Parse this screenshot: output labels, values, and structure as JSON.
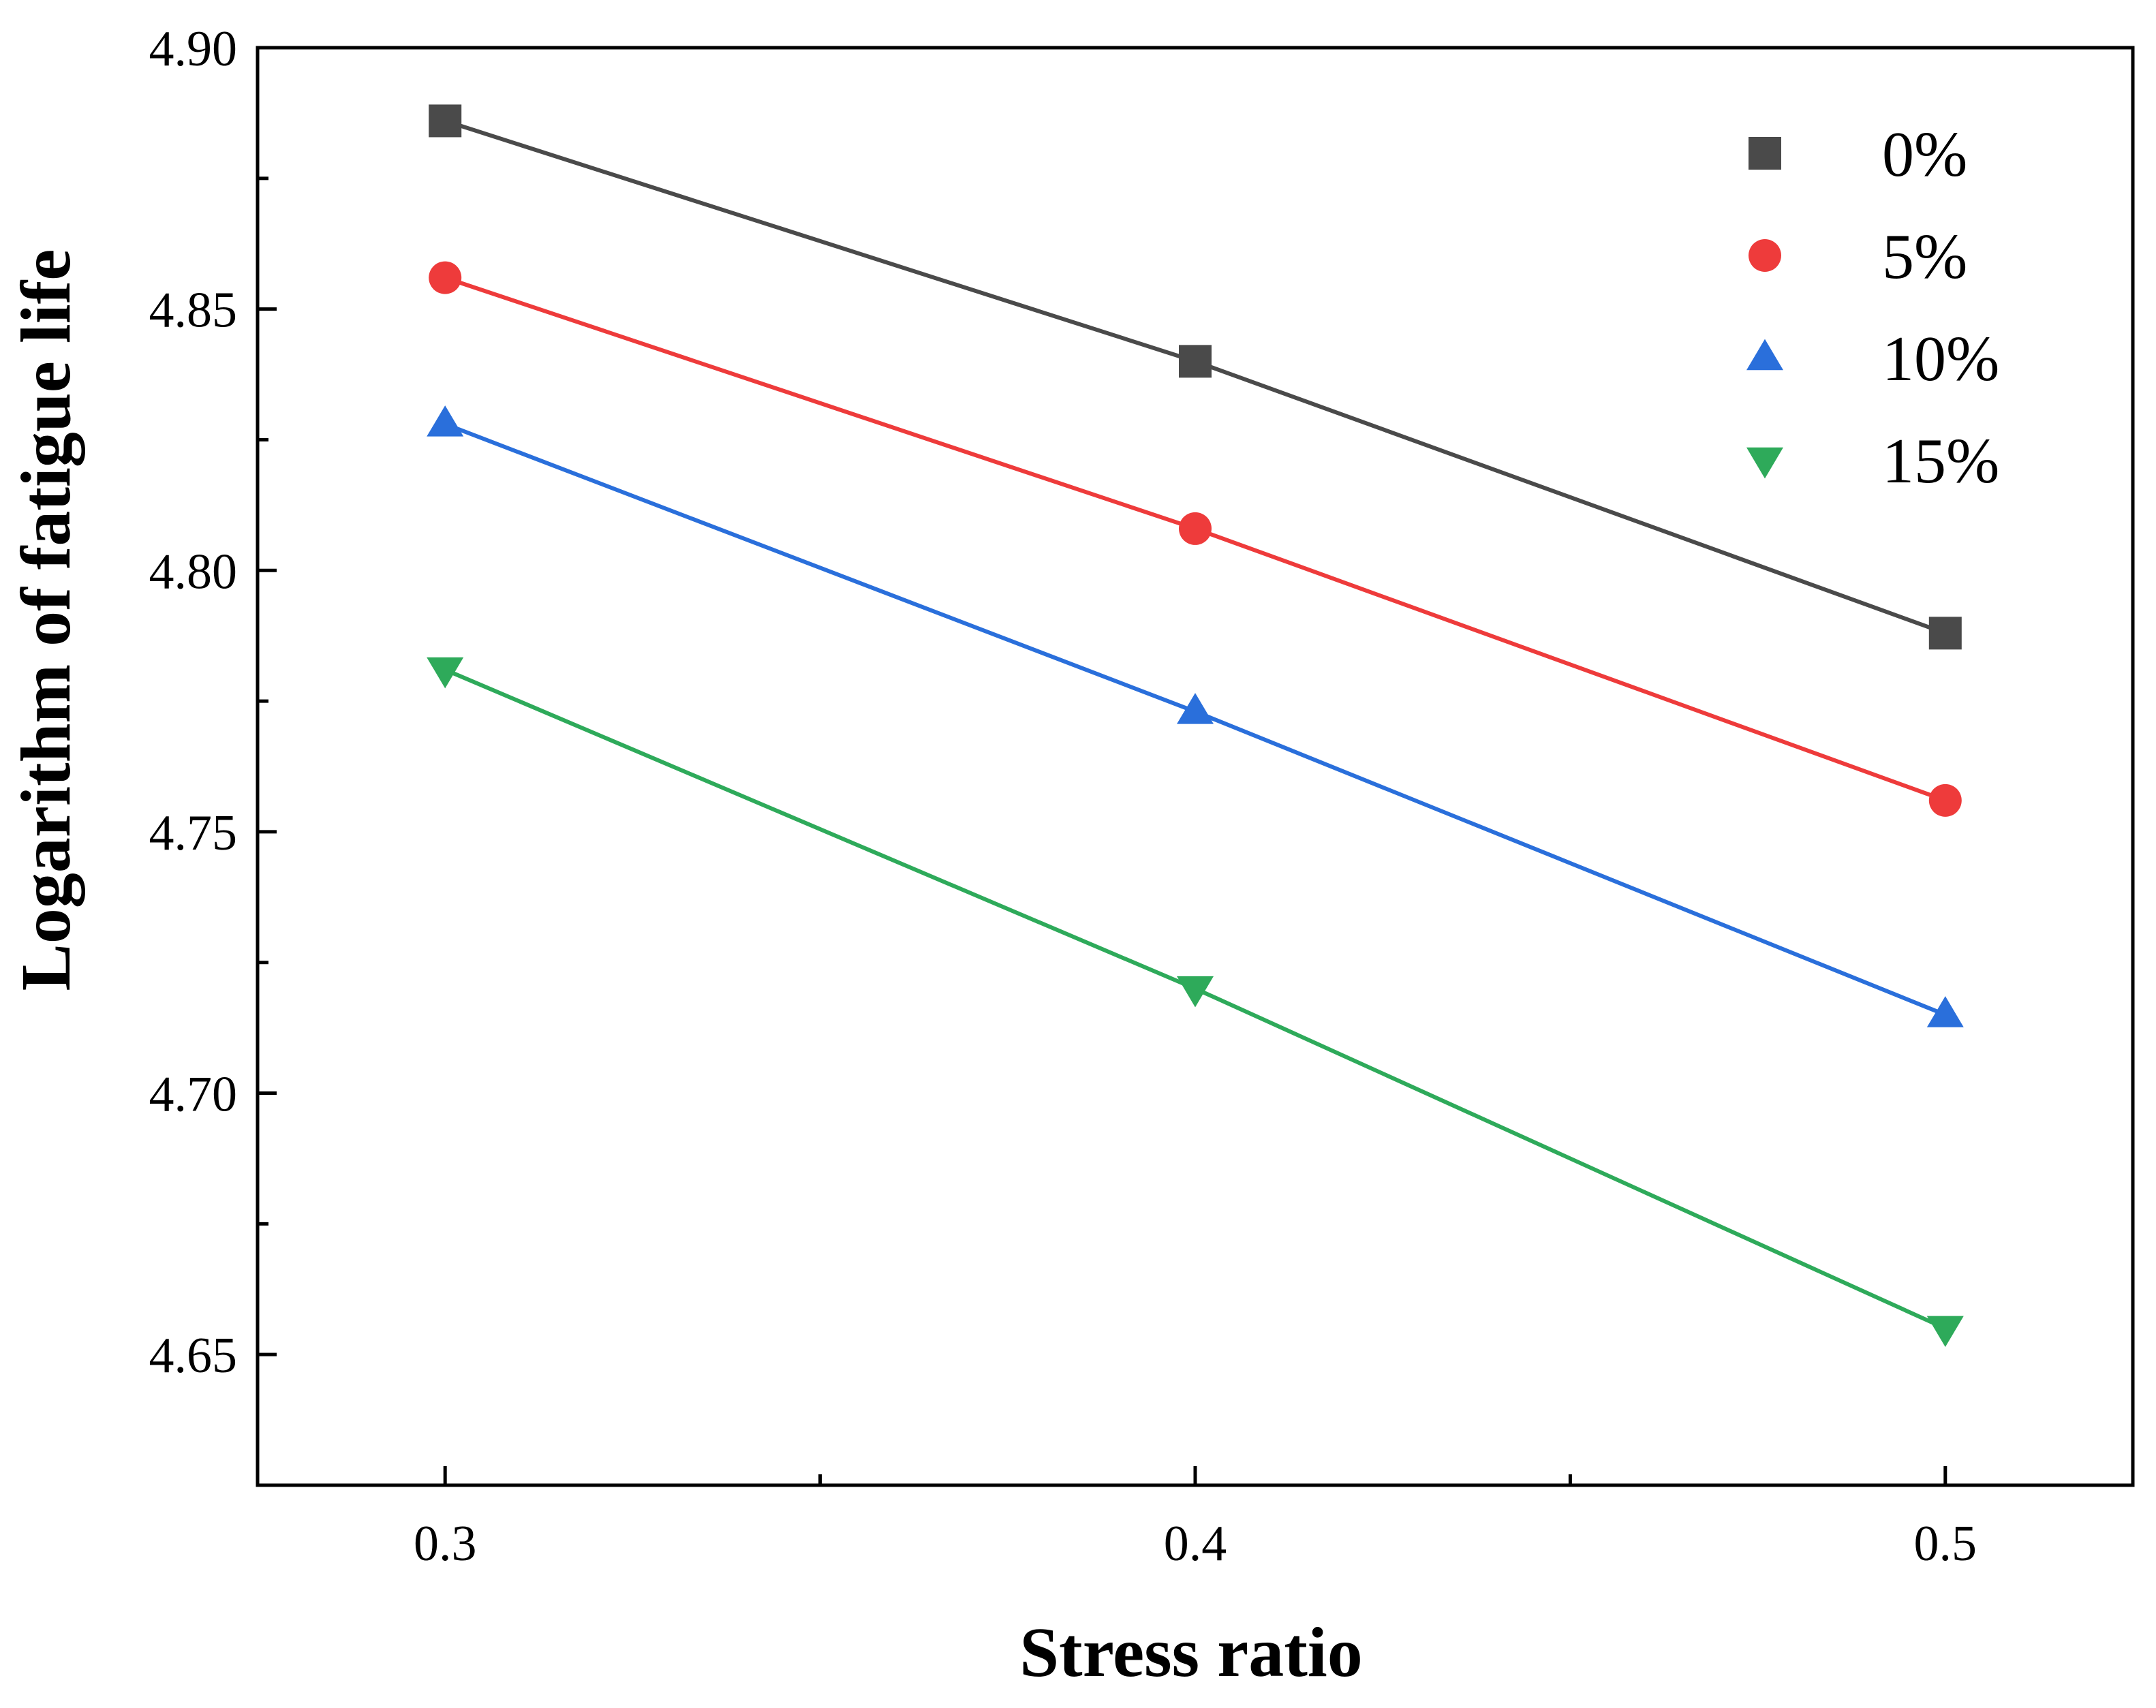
{
  "chart_data": {
    "type": "line",
    "title": "",
    "xlabel": "Stress ratio",
    "ylabel": "Logarithm of fatigue life",
    "x": [
      0.3,
      0.4,
      0.5
    ],
    "x_tick_labels": [
      "0.3",
      "0.4",
      "0.5"
    ],
    "y_tick_labels": [
      "4.65",
      "4.70",
      "4.75",
      "4.80",
      "4.85",
      "4.90"
    ],
    "y_ticks": [
      4.65,
      4.7,
      4.75,
      4.8,
      4.85,
      4.9
    ],
    "xlim": [
      0.275,
      0.525
    ],
    "ylim": [
      4.625,
      4.9
    ],
    "grid": false,
    "legend_position": "top-right",
    "series": [
      {
        "name": "0%",
        "values": [
          4.886,
          4.84,
          4.788
        ],
        "color": "#4a4a4a",
        "marker": "square"
      },
      {
        "name": "5%",
        "values": [
          4.856,
          4.808,
          4.756
        ],
        "color": "#ee3b3b",
        "marker": "circle"
      },
      {
        "name": "10%",
        "values": [
          4.828,
          4.773,
          4.715
        ],
        "color": "#2a6fdb",
        "marker": "triangle-up"
      },
      {
        "name": "15%",
        "values": [
          4.781,
          4.72,
          4.655
        ],
        "color": "#2eaa5a",
        "marker": "triangle-down"
      }
    ]
  }
}
